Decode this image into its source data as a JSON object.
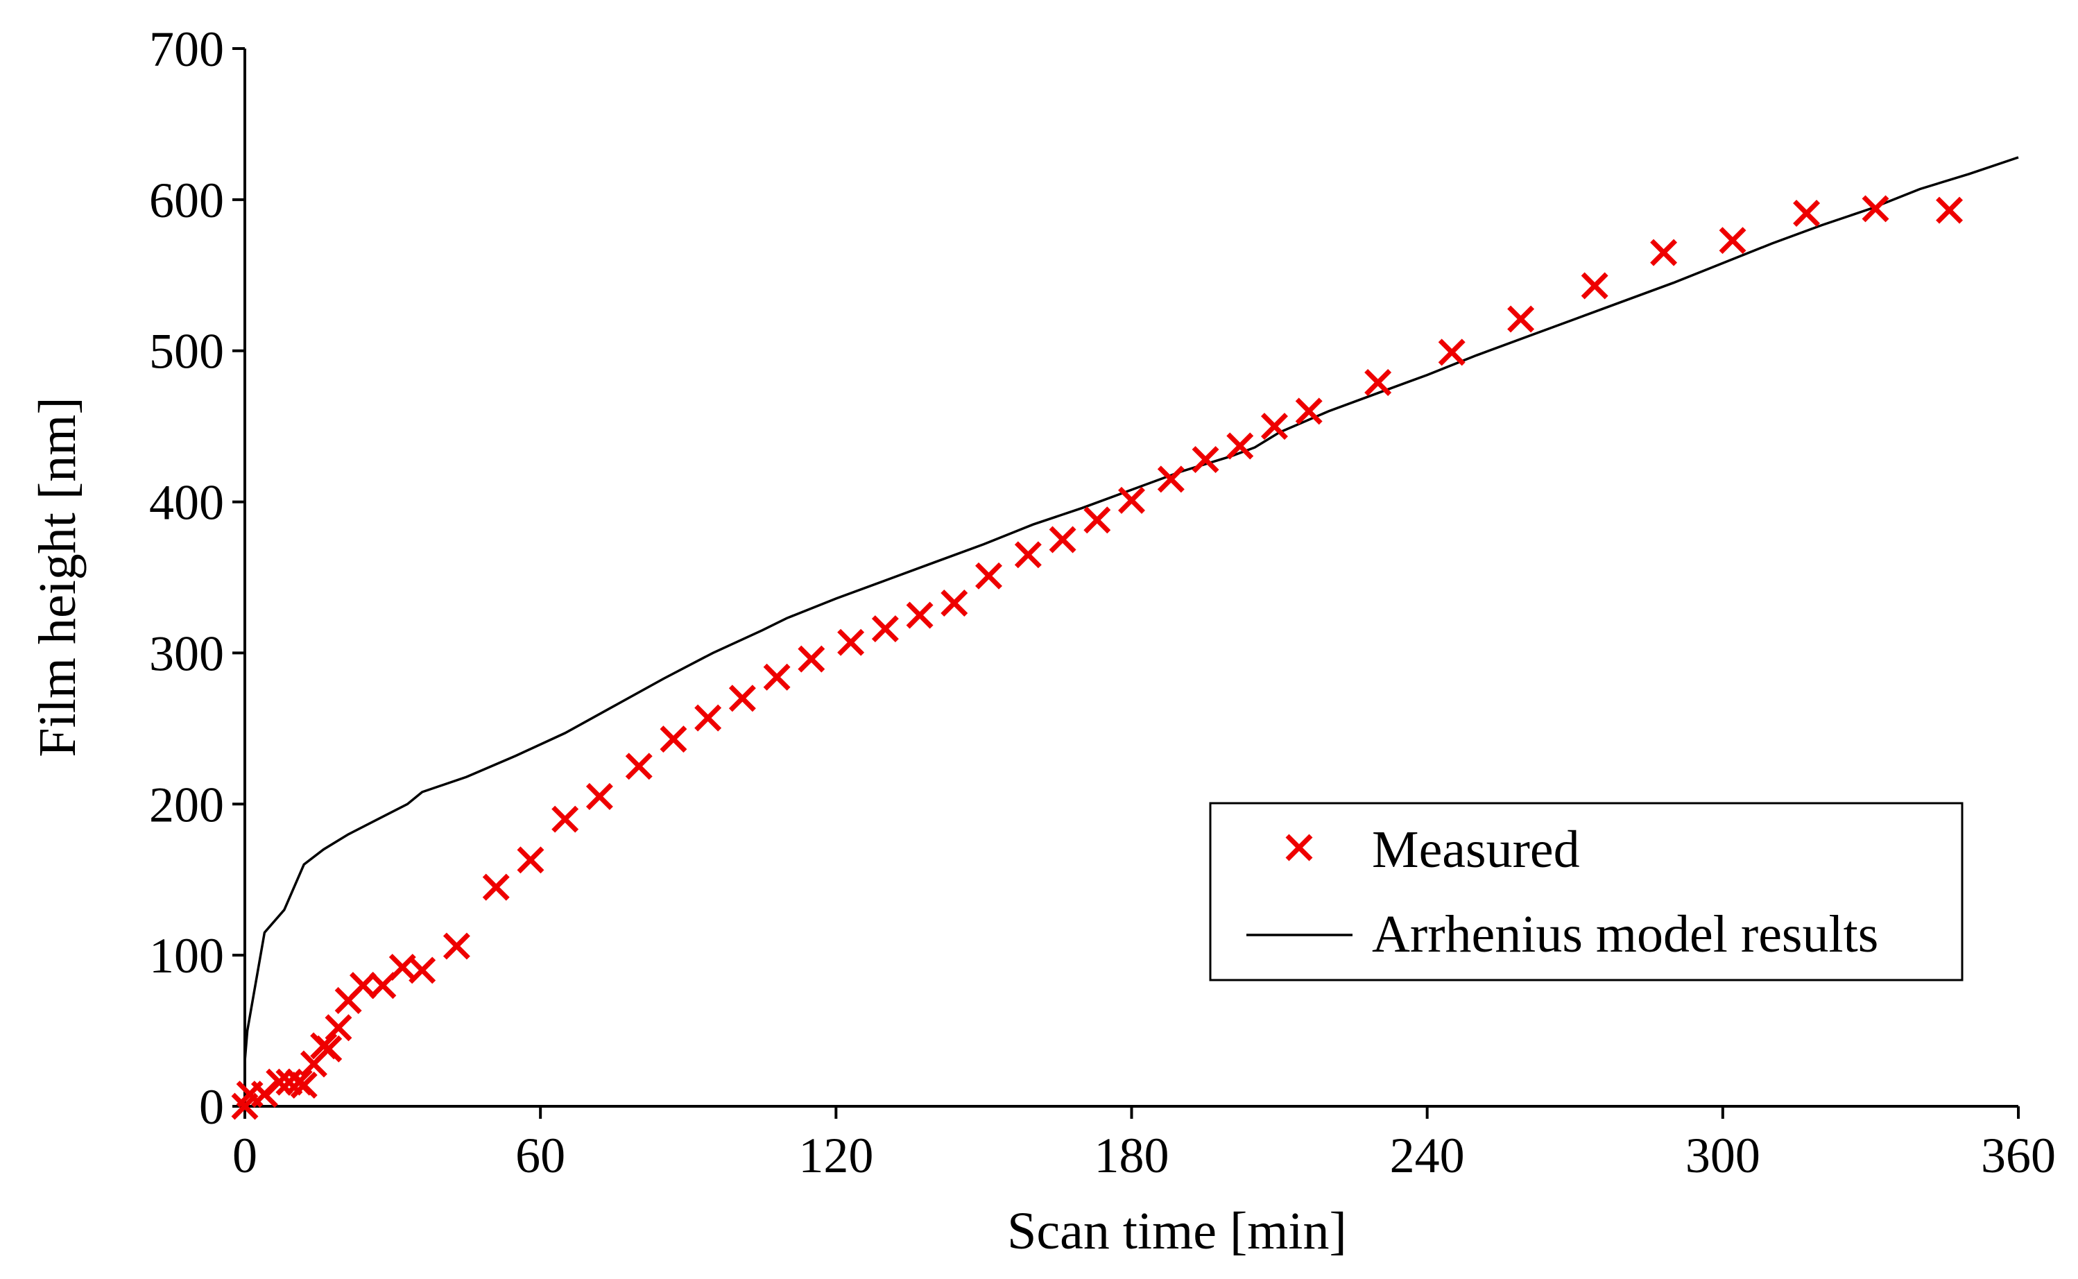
{
  "chart_data": {
    "type": "scatter",
    "title": "",
    "xlabel": "Scan time [min]",
    "ylabel": "Film height [nm]",
    "xlim": [
      0,
      360
    ],
    "ylim": [
      0,
      700
    ],
    "xticks": [
      0,
      60,
      120,
      180,
      240,
      300,
      360
    ],
    "yticks": [
      0,
      100,
      200,
      300,
      400,
      500,
      600,
      700
    ],
    "xtick_labels": [
      "0",
      "60",
      "120",
      "180",
      "240",
      "300",
      "360"
    ],
    "ytick_labels": [
      "0",
      "100",
      "200",
      "300",
      "400",
      "500",
      "600",
      "700"
    ],
    "grid": false,
    "legend_position": "lower-right",
    "marker_color": "#ee0000",
    "line_color": "#000000",
    "series": [
      {
        "name": "Measured",
        "style": "x-marker",
        "x": [
          0,
          1,
          4,
          7,
          9,
          11,
          12,
          14,
          16,
          17,
          19,
          21,
          24,
          28,
          32,
          36,
          43,
          51,
          58,
          65,
          72,
          80,
          87,
          94,
          101,
          108,
          115,
          123,
          130,
          137,
          144,
          151,
          159,
          166,
          173,
          180,
          188,
          195,
          202,
          209,
          216,
          230,
          245,
          259,
          274,
          288,
          302,
          317,
          331,
          346
        ],
        "y": [
          0,
          8,
          8,
          16,
          16,
          16,
          14,
          28,
          40,
          38,
          52,
          70,
          80,
          80,
          92,
          90,
          106,
          145,
          163,
          190,
          205,
          225,
          243,
          257,
          270,
          284,
          296,
          307,
          316,
          325,
          333,
          351,
          365,
          375,
          388,
          401,
          415,
          428,
          437,
          450,
          460,
          479,
          499,
          521,
          543,
          565,
          573,
          591,
          594,
          593
        ]
      },
      {
        "name": "Arrhenius model results",
        "style": "line",
        "x": [
          0,
          0.5,
          4,
          8,
          12,
          16,
          21,
          27,
          33,
          36,
          45,
          55,
          65,
          75,
          85,
          95,
          105,
          110,
          120,
          130,
          140,
          150,
          160,
          170,
          180,
          190,
          200,
          205,
          210,
          220,
          230,
          240,
          250,
          260,
          270,
          280,
          290,
          300,
          310,
          320,
          330,
          340,
          350,
          360
        ],
        "y": [
          30,
          50,
          115,
          130,
          160,
          170,
          180,
          190,
          200,
          208,
          218,
          232,
          247,
          265,
          283,
          300,
          315,
          323,
          336,
          348,
          360,
          372,
          385,
          396,
          408,
          420,
          430,
          436,
          446,
          460,
          472,
          484,
          497,
          509,
          521,
          533,
          545,
          558,
          571,
          583,
          594,
          607,
          617,
          628
        ]
      }
    ]
  }
}
